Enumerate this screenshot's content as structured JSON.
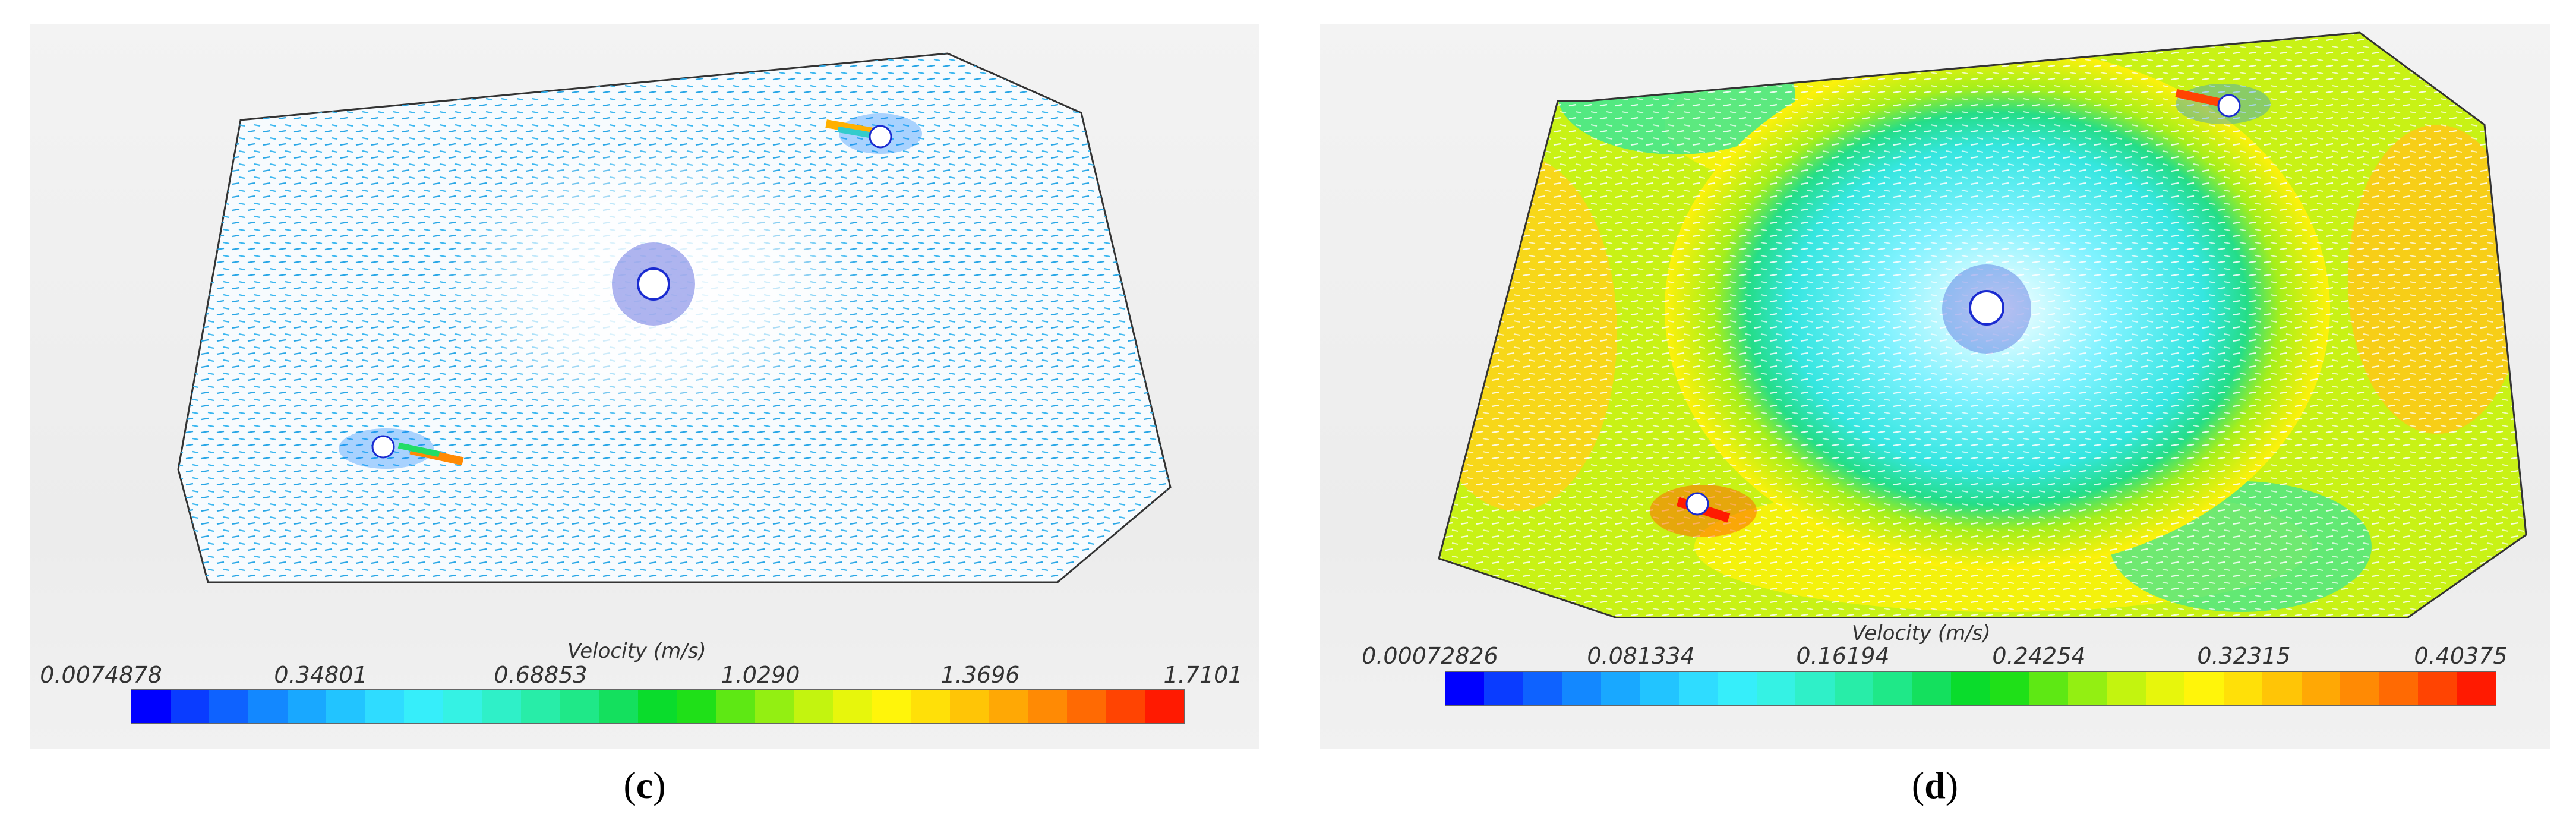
{
  "panels": [
    {
      "id": "c",
      "caption_open": "(",
      "caption_letter": "c",
      "caption_close": ")",
      "colorbar_title": "Velocity (m/s)",
      "tick_labels": [
        "0.0074878",
        "0.34801",
        "0.68853",
        "1.0290",
        "1.3696",
        "1.7101"
      ]
    },
    {
      "id": "d",
      "caption_open": "(",
      "caption_letter": "d",
      "caption_close": ")",
      "colorbar_title": "Velocity (m/s)",
      "tick_labels": [
        "0.00072826",
        "0.081334",
        "0.16194",
        "0.24254",
        "0.32315",
        "0.40375"
      ]
    }
  ],
  "colors": {
    "colormap": [
      "#0000ff",
      "#0a3cff",
      "#0e62ff",
      "#1388ff",
      "#19a8ff",
      "#22c4ff",
      "#2fdcff",
      "#36eefa",
      "#35f2e4",
      "#2ff0c8",
      "#28eda8",
      "#1fe888",
      "#14e05e",
      "#0adc2c",
      "#1fe018",
      "#5ee814",
      "#93ef12",
      "#c3f40f",
      "#e7f60c",
      "#fff50a",
      "#ffe008",
      "#ffc506",
      "#ffa805",
      "#ff8a04",
      "#ff6a03",
      "#ff4402",
      "#ff1a01"
    ],
    "vector_light": "#2aa7e6",
    "vector_dark": "#1a2bd0"
  }
}
